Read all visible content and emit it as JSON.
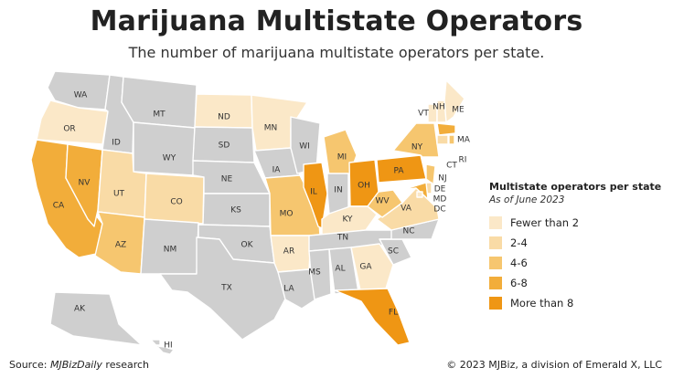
{
  "title": "Marijuana Multistate Operators",
  "subtitle": "The number of marijuana multistate operators per state.",
  "legend": {
    "title": "Multistate operators per state",
    "subtitle": "As of June 2023",
    "items": [
      {
        "label": "Fewer than 2",
        "color": "#fbe8c8"
      },
      {
        "label": "2-4",
        "color": "#f9dba6"
      },
      {
        "label": "4-6",
        "color": "#f6c66f"
      },
      {
        "label": "6-8",
        "color": "#f2ad3a"
      },
      {
        "label": "More than 8",
        "color": "#ef9614"
      }
    ]
  },
  "colors": {
    "no_data": "#cfcfcf"
  },
  "states": [
    {
      "abbr": "WA",
      "cat": -1
    },
    {
      "abbr": "OR",
      "cat": 0
    },
    {
      "abbr": "CA",
      "cat": 3
    },
    {
      "abbr": "NV",
      "cat": 3
    },
    {
      "abbr": "ID",
      "cat": -1
    },
    {
      "abbr": "MT",
      "cat": -1
    },
    {
      "abbr": "WY",
      "cat": -1
    },
    {
      "abbr": "UT",
      "cat": 1
    },
    {
      "abbr": "AZ",
      "cat": 2
    },
    {
      "abbr": "CO",
      "cat": 1
    },
    {
      "abbr": "NM",
      "cat": -1
    },
    {
      "abbr": "ND",
      "cat": 0
    },
    {
      "abbr": "SD",
      "cat": -1
    },
    {
      "abbr": "NE",
      "cat": -1
    },
    {
      "abbr": "KS",
      "cat": -1
    },
    {
      "abbr": "OK",
      "cat": -1
    },
    {
      "abbr": "TX",
      "cat": -1
    },
    {
      "abbr": "MN",
      "cat": 0
    },
    {
      "abbr": "IA",
      "cat": -1
    },
    {
      "abbr": "MO",
      "cat": 2
    },
    {
      "abbr": "AR",
      "cat": 0
    },
    {
      "abbr": "LA",
      "cat": -1
    },
    {
      "abbr": "WI",
      "cat": -1
    },
    {
      "abbr": "IL",
      "cat": 4
    },
    {
      "abbr": "MI",
      "cat": 2
    },
    {
      "abbr": "IN",
      "cat": -1
    },
    {
      "abbr": "OH",
      "cat": 4
    },
    {
      "abbr": "KY",
      "cat": 0
    },
    {
      "abbr": "TN",
      "cat": -1
    },
    {
      "abbr": "MS",
      "cat": -1
    },
    {
      "abbr": "AL",
      "cat": -1
    },
    {
      "abbr": "GA",
      "cat": 0
    },
    {
      "abbr": "FL",
      "cat": 4
    },
    {
      "abbr": "SC",
      "cat": -1
    },
    {
      "abbr": "NC",
      "cat": -1
    },
    {
      "abbr": "VA",
      "cat": 1
    },
    {
      "abbr": "WV",
      "cat": 2
    },
    {
      "abbr": "PA",
      "cat": 4
    },
    {
      "abbr": "NY",
      "cat": 2
    },
    {
      "abbr": "VT",
      "cat": 0
    },
    {
      "abbr": "NH",
      "cat": 0
    },
    {
      "abbr": "ME",
      "cat": 0
    },
    {
      "abbr": "MA",
      "cat": 3
    },
    {
      "abbr": "CT",
      "cat": 1
    },
    {
      "abbr": "RI",
      "cat": 2
    },
    {
      "abbr": "NJ",
      "cat": 2
    },
    {
      "abbr": "DE",
      "cat": 1
    },
    {
      "abbr": "MD",
      "cat": 3
    },
    {
      "abbr": "DC",
      "cat": 0
    },
    {
      "abbr": "AK",
      "cat": -1
    },
    {
      "abbr": "HI",
      "cat": -1
    }
  ],
  "footer": {
    "source_prefix": "Source: ",
    "source_name": "MJBizDaily",
    "source_suffix": " research",
    "copyright": "© 2023 MJBiz, a division of Emerald X, LLC"
  }
}
